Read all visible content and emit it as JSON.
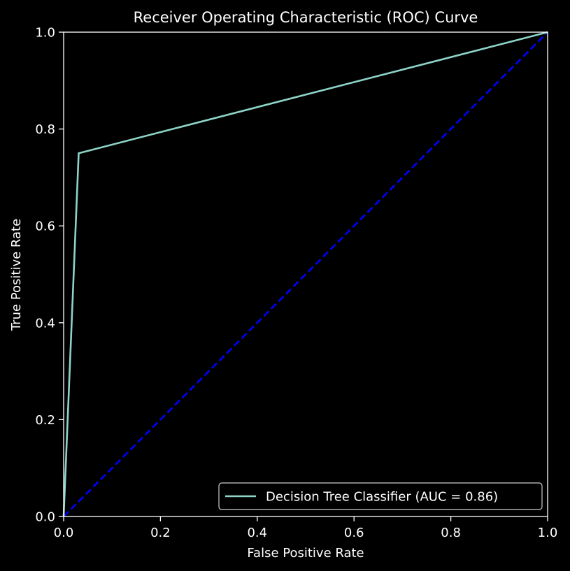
{
  "chart_data": {
    "type": "line",
    "title": "Receiver Operating Characteristic (ROC) Curve",
    "xlabel": "False Positive Rate",
    "ylabel": "True Positive Rate",
    "xlim": [
      0.0,
      1.0
    ],
    "ylim": [
      0.0,
      1.0
    ],
    "x_ticks": [
      "0.0",
      "0.2",
      "0.4",
      "0.6",
      "0.8",
      "1.0"
    ],
    "y_ticks": [
      "0.0",
      "0.2",
      "0.4",
      "0.6",
      "0.8",
      "1.0"
    ],
    "grid": false,
    "legend_position": "lower-right",
    "series": [
      {
        "name": "Decision Tree Classifier (AUC = 0.86)",
        "x": [
          0.0,
          0.031,
          1.0
        ],
        "y": [
          0.0,
          0.75,
          1.0
        ],
        "color": "#8dd3c7",
        "style": "solid"
      },
      {
        "x": [
          0.0,
          1.0
        ],
        "y": [
          0.0,
          1.0
        ],
        "color": "#0000ff",
        "style": "dashed"
      }
    ]
  },
  "colors": {
    "background": "#000000",
    "axes": "#ffffff",
    "text": "#ffffff"
  }
}
